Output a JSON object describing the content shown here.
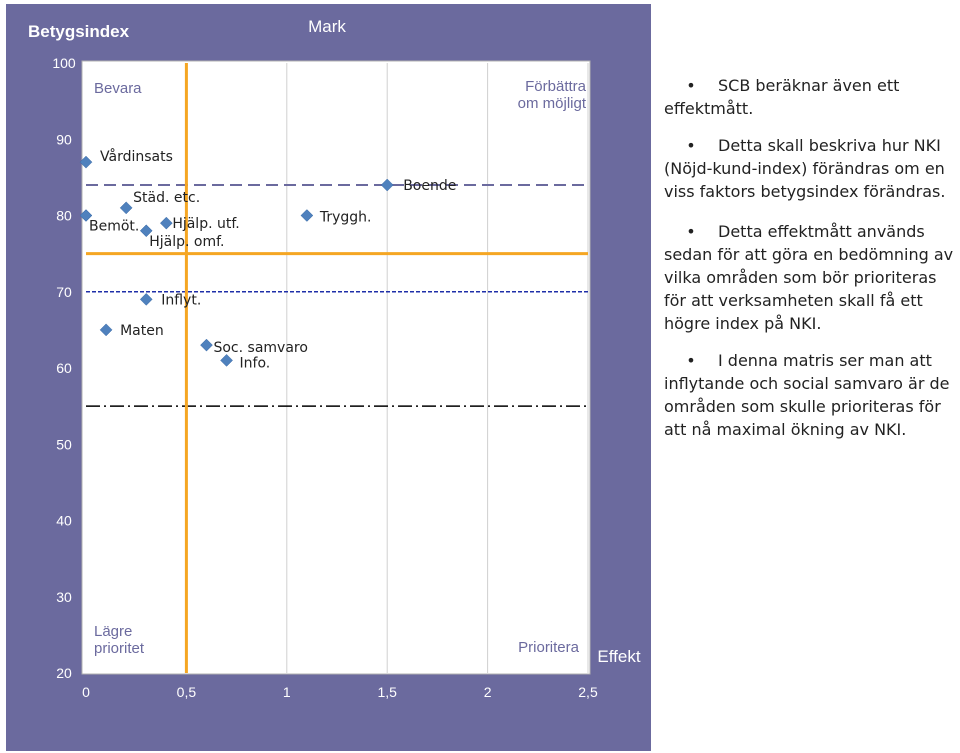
{
  "chart_data": {
    "type": "scatter",
    "corner_label": "Betygsindex",
    "title": "Mark",
    "xlabel": "Effekt",
    "xlim": [
      0,
      2.5
    ],
    "ylim": [
      20,
      100
    ],
    "x_ticks": [
      "0",
      "0,5",
      "1",
      "1,5",
      "2",
      "2,5"
    ],
    "y_ticks": [
      "20",
      "30",
      "40",
      "50",
      "60",
      "70",
      "80",
      "90",
      "100"
    ],
    "quadrants": {
      "top_left": "Bevara",
      "top_right": "Förbättra om möjligt",
      "bottom_left": "Lägre prioritet",
      "bottom_right": "Prioritera"
    },
    "reference_lines": {
      "vertical_x": 0.5,
      "horizontal_y": 75,
      "dashed_upper_y": 84,
      "dashed_lower_y": 70,
      "dashdot_y": 55
    },
    "colors": {
      "panel": "#6b6a9e",
      "plot_bg": "#ffffff",
      "point": "#4f81bd",
      "reference": "#f5a623",
      "dashed_upper": "#6b6a9e",
      "dashed_lower": "#1f2fa8",
      "dashdot": "#000000"
    },
    "points": [
      {
        "label": "Vårdinsats",
        "x": 0.0,
        "y": 87
      },
      {
        "label": "Bemöt.",
        "x": 0.0,
        "y": 80
      },
      {
        "label": "Städ. etc.",
        "x": 0.2,
        "y": 81
      },
      {
        "label": "Hjälp. omf.",
        "x": 0.3,
        "y": 78
      },
      {
        "label": "Hjälp. utf.",
        "x": 0.4,
        "y": 79
      },
      {
        "label": "Tryggh.",
        "x": 1.1,
        "y": 80
      },
      {
        "label": "Boende",
        "x": 1.5,
        "y": 84
      },
      {
        "label": "Inflyt.",
        "x": 0.3,
        "y": 69
      },
      {
        "label": "Maten",
        "x": 0.1,
        "y": 65
      },
      {
        "label": "Soc. samvaro",
        "x": 0.6,
        "y": 63
      },
      {
        "label": "Info.",
        "x": 0.7,
        "y": 61
      }
    ]
  },
  "bullets": [
    "SCB beräknar även ett effektmått.",
    "Detta skall beskriva hur NKI (Nöjd-kund-index) förändras om en viss faktors betygsindex förändras.",
    "Detta effektmått används sedan för att göra en bedömning av vilka områden som bör prioriteras för att verksamheten skall få ett högre index på NKI.",
    "I denna matris ser man att inflytande och social samvaro är de områden som skulle prioriteras för att nå maximal ökning av NKI."
  ]
}
